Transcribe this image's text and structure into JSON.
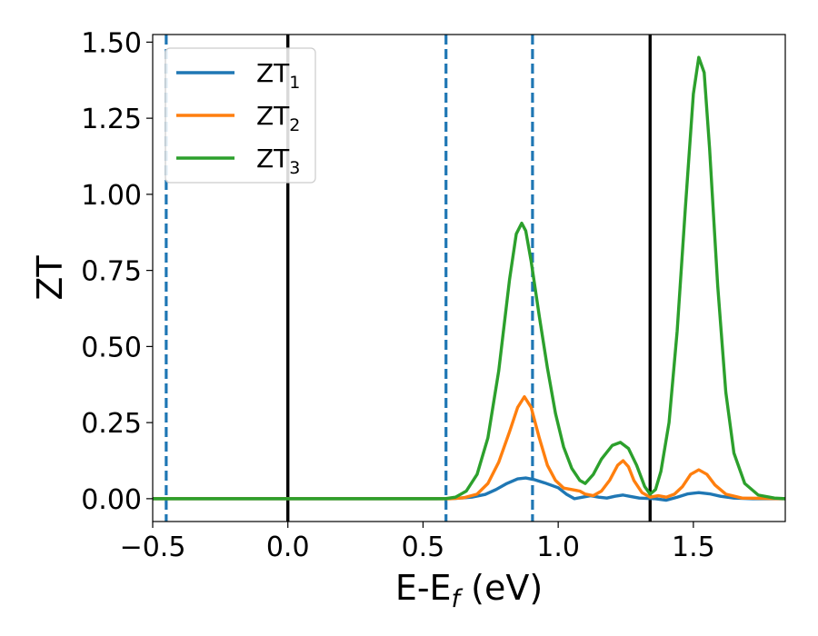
{
  "chart_data": {
    "type": "line",
    "xlabel": {
      "main": "E-E",
      "sub": "f",
      "unit": " (eV)"
    },
    "ylabel": "ZT",
    "xlim": [
      -0.5,
      1.84
    ],
    "ylim": [
      -0.075,
      1.525
    ],
    "xticks": [
      -0.5,
      0.0,
      0.5,
      1.0,
      1.5
    ],
    "xtick_labels": [
      "−0.5",
      "0.0",
      "0.5",
      "1.0",
      "1.5"
    ],
    "yticks": [
      0.0,
      0.25,
      0.5,
      0.75,
      1.0,
      1.25,
      1.5
    ],
    "ytick_labels": [
      "0.00",
      "0.25",
      "0.50",
      "0.75",
      "1.00",
      "1.25",
      "1.50"
    ],
    "grid": false,
    "legend_position": "top-left",
    "vertical_lines": [
      {
        "x": -0.45,
        "style": "dashed",
        "color": "#1f77b4"
      },
      {
        "x": 0.0,
        "style": "solid",
        "color": "#000000"
      },
      {
        "x": 0.585,
        "style": "dashed",
        "color": "#1f77b4"
      },
      {
        "x": 0.905,
        "style": "dashed",
        "color": "#1f77b4"
      },
      {
        "x": 1.34,
        "style": "solid",
        "color": "#000000"
      }
    ],
    "series": [
      {
        "name": {
          "main": "ZT",
          "sub": "1"
        },
        "color": "#1f77b4",
        "points": [
          [
            -0.5,
            0.0
          ],
          [
            0.55,
            0.0
          ],
          [
            0.62,
            0.001
          ],
          [
            0.68,
            0.005
          ],
          [
            0.73,
            0.014
          ],
          [
            0.77,
            0.03
          ],
          [
            0.81,
            0.05
          ],
          [
            0.85,
            0.065
          ],
          [
            0.88,
            0.068
          ],
          [
            0.91,
            0.063
          ],
          [
            0.95,
            0.052
          ],
          [
            1.0,
            0.036
          ],
          [
            1.03,
            0.015
          ],
          [
            1.06,
            0.0
          ],
          [
            1.09,
            0.005
          ],
          [
            1.12,
            0.01
          ],
          [
            1.15,
            0.005
          ],
          [
            1.18,
            0.002
          ],
          [
            1.21,
            0.008
          ],
          [
            1.24,
            0.012
          ],
          [
            1.27,
            0.007
          ],
          [
            1.3,
            0.002
          ],
          [
            1.33,
            0.001
          ],
          [
            1.36,
            0.0
          ],
          [
            1.4,
            -0.005
          ],
          [
            1.44,
            0.005
          ],
          [
            1.48,
            0.016
          ],
          [
            1.52,
            0.02
          ],
          [
            1.56,
            0.016
          ],
          [
            1.6,
            0.008
          ],
          [
            1.65,
            0.002
          ],
          [
            1.72,
            0.0
          ],
          [
            1.84,
            0.0
          ]
        ]
      },
      {
        "name": {
          "main": "ZT",
          "sub": "2"
        },
        "color": "#ff7f0e",
        "points": [
          [
            -0.5,
            0.0
          ],
          [
            0.6,
            0.0
          ],
          [
            0.65,
            0.003
          ],
          [
            0.7,
            0.015
          ],
          [
            0.74,
            0.05
          ],
          [
            0.78,
            0.12
          ],
          [
            0.82,
            0.22
          ],
          [
            0.85,
            0.3
          ],
          [
            0.875,
            0.335
          ],
          [
            0.9,
            0.3
          ],
          [
            0.93,
            0.2
          ],
          [
            0.96,
            0.11
          ],
          [
            0.99,
            0.06
          ],
          [
            1.02,
            0.035
          ],
          [
            1.05,
            0.03
          ],
          [
            1.08,
            0.025
          ],
          [
            1.1,
            0.015
          ],
          [
            1.13,
            0.01
          ],
          [
            1.16,
            0.025
          ],
          [
            1.19,
            0.06
          ],
          [
            1.22,
            0.11
          ],
          [
            1.24,
            0.125
          ],
          [
            1.26,
            0.105
          ],
          [
            1.28,
            0.06
          ],
          [
            1.31,
            0.02
          ],
          [
            1.34,
            0.005
          ],
          [
            1.37,
            0.01
          ],
          [
            1.4,
            0.005
          ],
          [
            1.43,
            0.015
          ],
          [
            1.46,
            0.04
          ],
          [
            1.49,
            0.08
          ],
          [
            1.52,
            0.095
          ],
          [
            1.55,
            0.08
          ],
          [
            1.58,
            0.045
          ],
          [
            1.62,
            0.015
          ],
          [
            1.68,
            0.002
          ],
          [
            1.84,
            0.0
          ]
        ]
      },
      {
        "name": {
          "main": "ZT",
          "sub": "3"
        },
        "color": "#2ca02c",
        "points": [
          [
            -0.5,
            0.0
          ],
          [
            0.58,
            0.0
          ],
          [
            0.62,
            0.005
          ],
          [
            0.66,
            0.025
          ],
          [
            0.7,
            0.08
          ],
          [
            0.74,
            0.2
          ],
          [
            0.78,
            0.42
          ],
          [
            0.82,
            0.72
          ],
          [
            0.845,
            0.87
          ],
          [
            0.865,
            0.905
          ],
          [
            0.88,
            0.88
          ],
          [
            0.9,
            0.78
          ],
          [
            0.93,
            0.6
          ],
          [
            0.96,
            0.43
          ],
          [
            0.99,
            0.28
          ],
          [
            1.02,
            0.17
          ],
          [
            1.05,
            0.1
          ],
          [
            1.08,
            0.06
          ],
          [
            1.1,
            0.05
          ],
          [
            1.13,
            0.08
          ],
          [
            1.16,
            0.13
          ],
          [
            1.2,
            0.175
          ],
          [
            1.23,
            0.185
          ],
          [
            1.26,
            0.165
          ],
          [
            1.29,
            0.11
          ],
          [
            1.32,
            0.04
          ],
          [
            1.34,
            0.015
          ],
          [
            1.36,
            0.03
          ],
          [
            1.38,
            0.09
          ],
          [
            1.41,
            0.25
          ],
          [
            1.44,
            0.55
          ],
          [
            1.47,
            0.95
          ],
          [
            1.5,
            1.33
          ],
          [
            1.52,
            1.45
          ],
          [
            1.54,
            1.4
          ],
          [
            1.56,
            1.15
          ],
          [
            1.59,
            0.7
          ],
          [
            1.62,
            0.35
          ],
          [
            1.65,
            0.15
          ],
          [
            1.69,
            0.05
          ],
          [
            1.74,
            0.012
          ],
          [
            1.8,
            0.002
          ],
          [
            1.84,
            0.0
          ]
        ]
      }
    ]
  }
}
